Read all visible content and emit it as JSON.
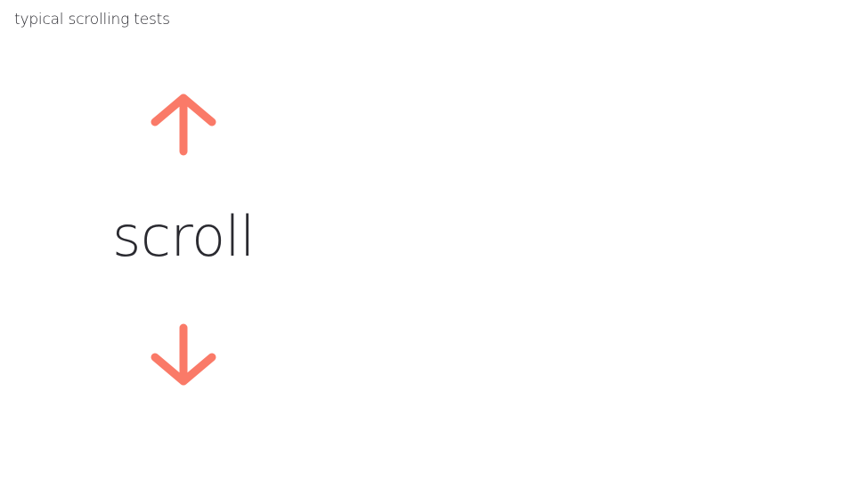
{
  "title": "typical scrolling tests",
  "main": {
    "scroll_label": "scroll",
    "up_icon": "arrow-up-icon",
    "down_icon": "arrow-down-icon"
  },
  "colors": {
    "accent": "#fa7a68",
    "text": "#2a2a30",
    "background": "#ffffff"
  }
}
